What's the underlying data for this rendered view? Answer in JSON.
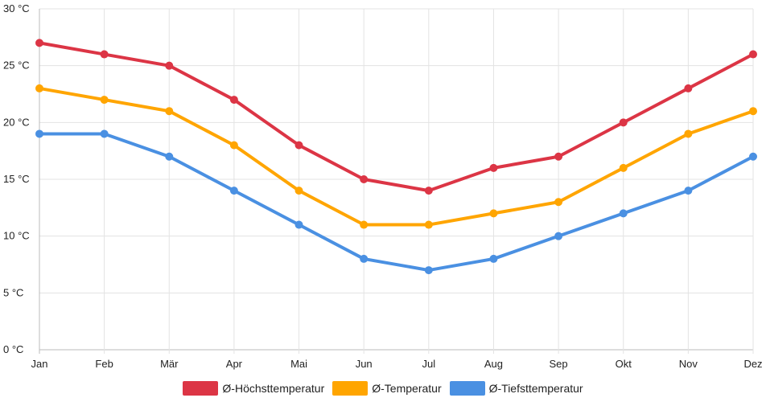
{
  "chart_data": {
    "type": "line",
    "categories": [
      "Jan",
      "Feb",
      "Mär",
      "Apr",
      "Mai",
      "Jun",
      "Jul",
      "Aug",
      "Sep",
      "Okt",
      "Nov",
      "Dez"
    ],
    "y_ticks": [
      "0 °C",
      "5 °C",
      "10 °C",
      "15 °C",
      "20 °C",
      "25 °C",
      "30 °C"
    ],
    "ylim": [
      0,
      30
    ],
    "grid": true,
    "legend_position": "bottom",
    "series": [
      {
        "name": "Ø-Höchsttemperatur",
        "color": "#dc3545",
        "values": [
          27,
          26,
          25,
          22,
          18,
          15,
          14,
          16,
          17,
          20,
          23,
          26
        ]
      },
      {
        "name": "Ø-Temperatur",
        "color": "#ffa500",
        "values": [
          23,
          22,
          21,
          18,
          14,
          11,
          11,
          12,
          13,
          16,
          19,
          21
        ]
      },
      {
        "name": "Ø-Tiefsttemperatur",
        "color": "#4a90e2",
        "values": [
          19,
          19,
          17,
          14,
          11,
          8,
          7,
          8,
          10,
          12,
          14,
          17
        ]
      }
    ]
  }
}
